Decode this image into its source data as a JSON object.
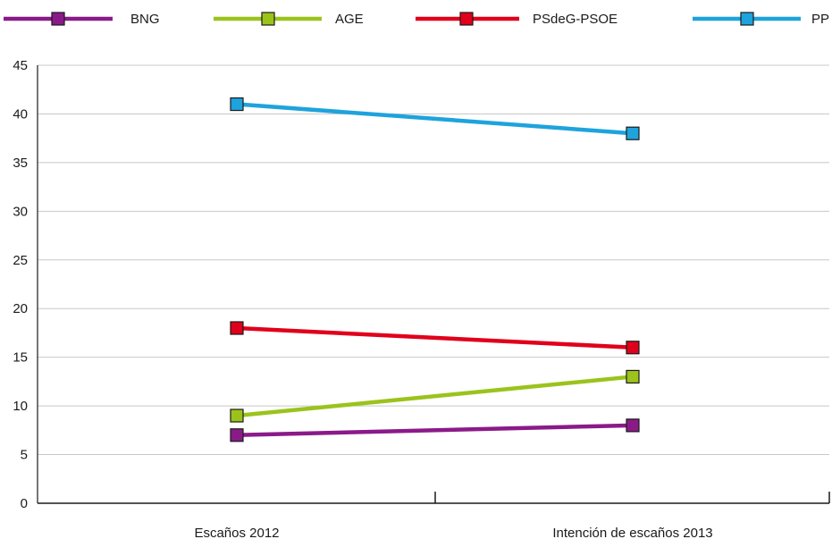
{
  "chart_data": {
    "type": "line",
    "title": "",
    "xlabel": "",
    "ylabel": "",
    "categories": [
      "Escaños 2012",
      "Intención de escaños 2013"
    ],
    "ylim": [
      0,
      45
    ],
    "yticks": [
      0,
      5,
      10,
      15,
      20,
      25,
      30,
      35,
      40,
      45
    ],
    "grid": true,
    "legend_position": "top",
    "marker": "square",
    "series": [
      {
        "name": "BNG",
        "color": "#8b1a89",
        "values": [
          7,
          8
        ]
      },
      {
        "name": "AGE",
        "color": "#9bc31c",
        "values": [
          9,
          13
        ]
      },
      {
        "name": "PSdeG-PSOE",
        "color": "#e0001b",
        "values": [
          18,
          16
        ]
      },
      {
        "name": "PP",
        "color": "#1ea3dc",
        "values": [
          41,
          38
        ]
      }
    ]
  }
}
